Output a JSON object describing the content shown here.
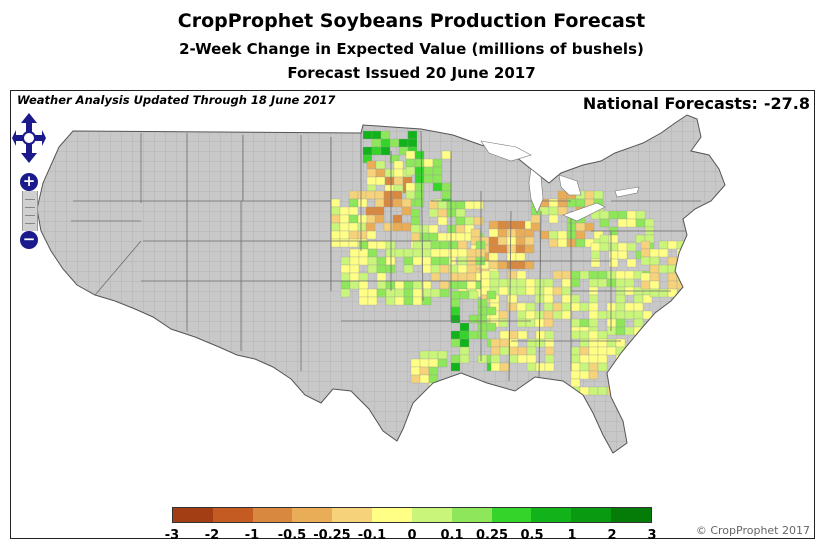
{
  "header": {
    "title": "CropProphet Soybeans Production Forecast",
    "subtitle": "2-Week Change in Expected Value (millions of bushels)",
    "issued": "Forecast Issued 20 June 2017"
  },
  "map": {
    "updated": "Weather Analysis Updated Through 18 June 2017",
    "national_label": "National Forecasts:",
    "national_value": "-27.8",
    "copyright": "© CropProphet 2017",
    "controls": {
      "zoom_in": "+",
      "zoom_out": "−"
    },
    "colors": {
      "land": "#c8c8c8",
      "border": "#8a8a8a",
      "frame": "#222222"
    }
  },
  "legend": {
    "labels": [
      "-3",
      "-2",
      "-1",
      "-0.5",
      "-0.25",
      "-0.1",
      "0",
      "0.1",
      "0.25",
      "0.5",
      "1",
      "2",
      "3"
    ],
    "colors": [
      "#a33d14",
      "#c45b23",
      "#d98840",
      "#e9ad57",
      "#f6d37a",
      "#ffff86",
      "#c9f57a",
      "#8ee65a",
      "#35d42a",
      "#12b31a",
      "#0a9a12",
      "#057c08"
    ]
  }
}
